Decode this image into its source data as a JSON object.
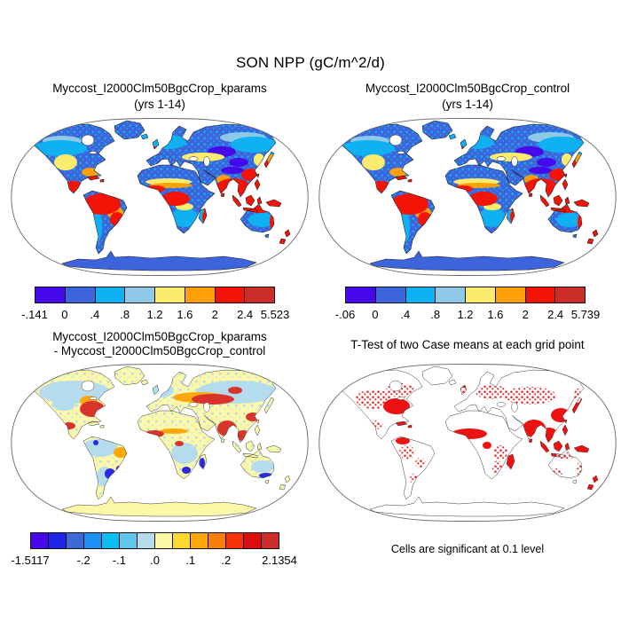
{
  "figure": {
    "title": "SON NPP (gC/m^2/d)",
    "background": "#ffffff"
  },
  "panels": [
    {
      "id": "top-left",
      "title_line1": "Myccost_I2000Clm50BgcCrop_kparams",
      "title_line2": "(yrs 1-14)",
      "colorbar": {
        "colors": [
          "#4609ec",
          "#3e64dc",
          "#0fb1f2",
          "#8ecae8",
          "#fbec6e",
          "#ffa00a",
          "#f41407",
          "#cc2d28"
        ],
        "ticks": [
          "-.141",
          "0",
          ".4",
          ".8",
          "1.2",
          "1.6",
          "2",
          "2.4",
          "5.523"
        ]
      }
    },
    {
      "id": "top-right",
      "title_line1": "Myccost_I2000Clm50BgcCrop_control",
      "title_line2": "(yrs 1-14)",
      "colorbar": {
        "colors": [
          "#4609ec",
          "#3e64dc",
          "#0fb1f2",
          "#8ecae8",
          "#fbec6e",
          "#ffa00a",
          "#f41407",
          "#cc2d28"
        ],
        "ticks": [
          "-.06",
          "0",
          ".4",
          ".8",
          "1.2",
          "1.6",
          "2",
          "2.4",
          "5.739"
        ]
      }
    },
    {
      "id": "bottom-left",
      "title_line1": "Myccost_I2000Clm50BgcCrop_kparams",
      "title_line2": "- Myccost_I2000Clm50BgcCrop_control",
      "colorbar": {
        "colors": [
          "#4609ec",
          "#2026e8",
          "#3e6ad8",
          "#1f8ff8",
          "#0abef2",
          "#62c6ea",
          "#b5dcec",
          "#fcf8a8",
          "#fcd830",
          "#fda80a",
          "#fb7d0a",
          "#f8330a",
          "#dd0d0d",
          "#cc2d28"
        ],
        "ticks": [
          "-1.5117",
          "-.2",
          "-.1",
          ".0",
          ".1",
          ".2",
          "2.1354"
        ],
        "tick_positions": [
          0,
          0.2143,
          0.3571,
          0.5,
          0.6429,
          0.7857,
          1
        ]
      }
    },
    {
      "id": "bottom-right",
      "title_line1": "T-Test of two Case means at each grid point",
      "caption": "Cells are significant at 0.1 level",
      "significance_color": "#ee1111"
    }
  ],
  "chart_data": [
    {
      "type": "heatmap",
      "subtype": "global-map",
      "projection": "robinson",
      "title": "Myccost_I2000Clm50BgcCrop_kparams (yrs 1-14)",
      "variable": "SON NPP",
      "units": "gC/m^2/d",
      "levels": [
        -0.141,
        0,
        0.4,
        0.8,
        1.2,
        1.6,
        2,
        2.4,
        5.523
      ],
      "min": -0.141,
      "max": 5.523,
      "palette": [
        "#4609ec",
        "#3e64dc",
        "#0fb1f2",
        "#8ecae8",
        "#fbec6e",
        "#ffa00a",
        "#f41407",
        "#cc2d28"
      ],
      "legend_position": "bottom",
      "pattern_notes": "high NPP (red) in tropics: Amazon, Congo, SE Asia, Indonesia, N/E Australia coasts; low NPP (blue/violet) in boreal latitudes, deserts, Tibet, Antarctica; ocean blank"
    },
    {
      "type": "heatmap",
      "subtype": "global-map",
      "projection": "robinson",
      "title": "Myccost_I2000Clm50BgcCrop_control (yrs 1-14)",
      "variable": "SON NPP",
      "units": "gC/m^2/d",
      "levels": [
        -0.06,
        0,
        0.4,
        0.8,
        1.2,
        1.6,
        2,
        2.4,
        5.739
      ],
      "min": -0.06,
      "max": 5.739,
      "palette": [
        "#4609ec",
        "#3e64dc",
        "#0fb1f2",
        "#8ecae8",
        "#fbec6e",
        "#ffa00a",
        "#f41407",
        "#cc2d28"
      ],
      "legend_position": "bottom",
      "pattern_notes": "nearly identical spatial pattern to kparams case"
    },
    {
      "type": "heatmap",
      "subtype": "global-map-difference",
      "projection": "robinson",
      "title": "Myccost_I2000Clm50BgcCrop_kparams - Myccost_I2000Clm50BgcCrop_control",
      "variable": "SON NPP difference",
      "units": "gC/m^2/d",
      "levels": [
        -1.5117,
        -0.2,
        -0.1,
        0,
        0.1,
        0.2,
        2.1354
      ],
      "min": -1.5117,
      "max": 2.1354,
      "palette": [
        "#4609ec",
        "#2026e8",
        "#3e6ad8",
        "#1f8ff8",
        "#0abef2",
        "#62c6ea",
        "#b5dcec",
        "#fcf8a8",
        "#fcd830",
        "#fda80a",
        "#fb7d0a",
        "#f8330a",
        "#dd0d0d",
        "#cc2d28"
      ],
      "legend_position": "bottom",
      "pattern_notes": "positive differences (red/orange) over eastern US, Europe-Russia band, India, SE/E Asia, West Africa; negative (blue) spots over S Brazil/Argentina, S Africa, Madagascar, S Australia; elsewhere near zero (pale yellow / light blue)"
    },
    {
      "type": "heatmap",
      "subtype": "significance-mask",
      "projection": "robinson",
      "title": "T-Test of two Case means at each grid point",
      "note": "Cells are significant at 0.1 level",
      "significance_level": 0.1,
      "significant_color": "#ee1111",
      "pattern_notes": "significant cells (red) dense over India, SE Asia, E China, West Africa/Sahel, central-eastern US, Mexico, Europe, scattered over S America, S Africa, Australia coasts, Indonesia"
    }
  ]
}
